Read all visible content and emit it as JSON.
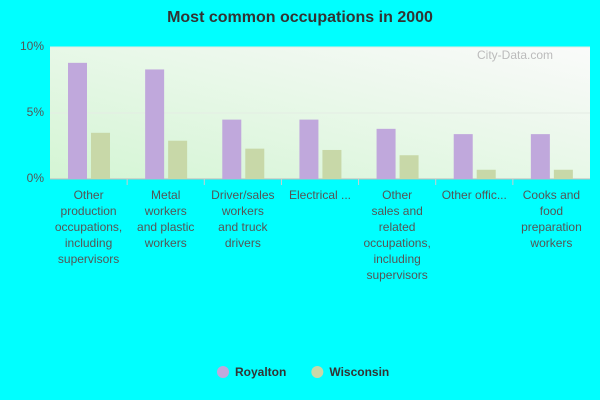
{
  "chart_data": {
    "type": "bar",
    "title": "Most common occupations in 2000",
    "watermark": "City-Data.com",
    "categories": [
      [
        "Other",
        "production",
        "occupations,",
        "including",
        "supervisors"
      ],
      [
        "Metal",
        "workers",
        "and plastic",
        "workers"
      ],
      [
        "Driver/sales",
        "workers",
        "and truck",
        "drivers"
      ],
      [
        "Electrical ..."
      ],
      [
        "Other",
        "sales and",
        "related",
        "occupations,",
        "including",
        "supervisors"
      ],
      [
        "Other offic..."
      ],
      [
        "Cooks and",
        "food",
        "preparation",
        "workers"
      ]
    ],
    "series": [
      {
        "name": "Royalton",
        "color": "#c0a8dc",
        "values": [
          8.8,
          8.3,
          4.5,
          4.5,
          3.8,
          3.4,
          3.4
        ]
      },
      {
        "name": "Wisconsin",
        "color": "#c8d8a8",
        "values": [
          3.5,
          2.9,
          2.3,
          2.2,
          1.8,
          0.7,
          0.7
        ]
      }
    ],
    "ylim": [
      0,
      10
    ],
    "yticks": [
      {
        "value": 0,
        "label": "0%"
      },
      {
        "value": 5,
        "label": "5%"
      },
      {
        "value": 10,
        "label": "10%"
      }
    ],
    "grid": true,
    "legend": "bottom"
  }
}
